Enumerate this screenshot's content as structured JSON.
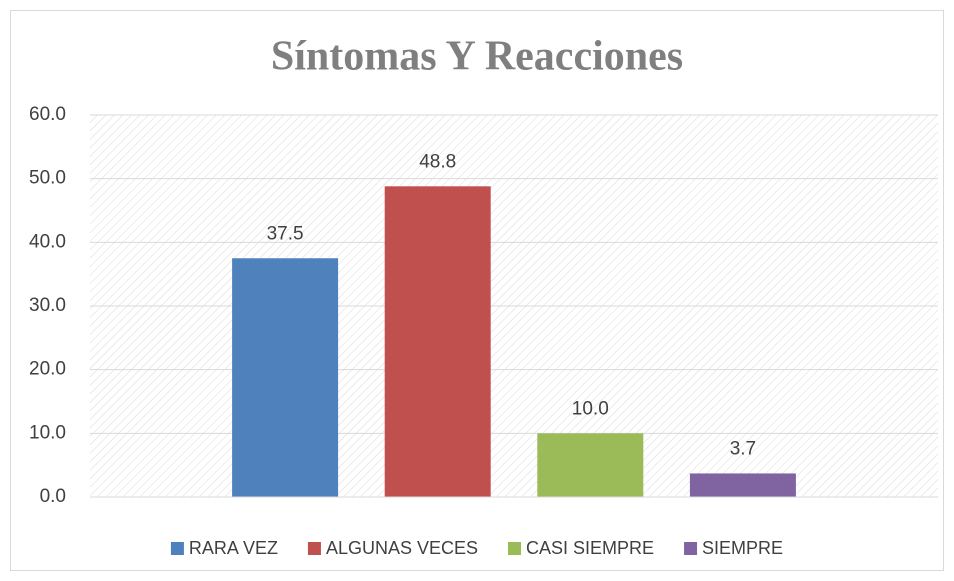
{
  "chart_data": {
    "type": "bar",
    "title": "Síntomas Y Reacciones",
    "categories": [
      null
    ],
    "series": [
      {
        "name": "RARA VEZ",
        "color": "#4f81bd",
        "values": [
          37.5
        ],
        "value_labels": [
          "37.5"
        ]
      },
      {
        "name": "ALGUNAS VECES",
        "color": "#c0504d",
        "values": [
          48.8
        ],
        "value_labels": [
          "48.8"
        ]
      },
      {
        "name": "CASI SIEMPRE",
        "color": "#9bbb59",
        "values": [
          10
        ],
        "value_labels": [
          "10.0"
        ]
      },
      {
        "name": "SIEMPRE",
        "color": "#8064a2",
        "values": [
          3.7
        ],
        "value_labels": [
          "3.7"
        ]
      }
    ],
    "ylim": [
      0,
      60
    ],
    "yticks": [
      {
        "value": 0,
        "label": "0.0"
      },
      {
        "value": 10,
        "label": "10.0"
      },
      {
        "value": 20,
        "label": "20.0"
      },
      {
        "value": 30,
        "label": "30.0"
      },
      {
        "value": 40,
        "label": "40.0"
      },
      {
        "value": 50,
        "label": "50.0"
      },
      {
        "value": 60,
        "label": "60.0"
      }
    ],
    "grid": true,
    "legend": "bottom"
  }
}
